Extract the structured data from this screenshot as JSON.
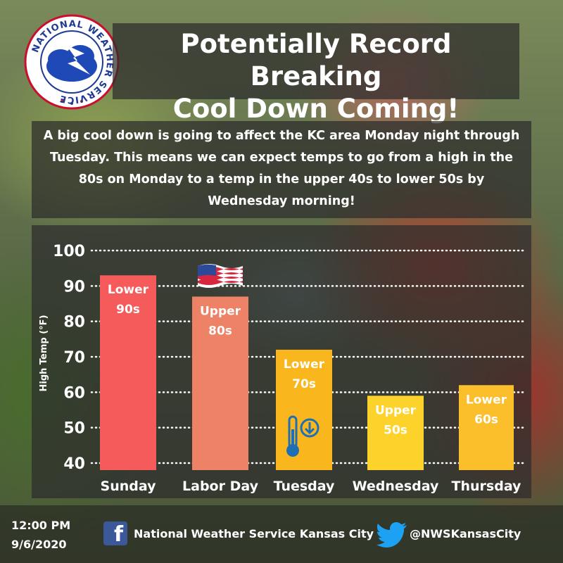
{
  "header": {
    "title_line1": "Potentially Record Breaking",
    "title_line2": "Cool Down Coming!",
    "logo_text": "NATIONAL WEATHER SERVICE"
  },
  "description": "A big cool down is going to affect the KC area Monday night through Tuesday. This means we can expect temps to go from a high in the 80s on Monday to a temp in the upper 40s to lower 50s by Wednesday morning!",
  "chart_data": {
    "type": "bar",
    "ylabel": "High Temp (°F)",
    "ylim": [
      40,
      100
    ],
    "yticks": [
      40,
      50,
      60,
      70,
      80,
      90,
      100
    ],
    "grid": true,
    "categories": [
      "Sunday",
      "Labor Day",
      "Tuesday",
      "Wednesday",
      "Thursday"
    ],
    "values": [
      93,
      87,
      72,
      59,
      62
    ],
    "bar_labels": [
      [
        "Lower",
        "90s"
      ],
      [
        "Upper",
        "80s"
      ],
      [
        "Lower",
        "70s"
      ],
      [
        "Upper",
        "50s"
      ],
      [
        "Lower",
        "60s"
      ]
    ],
    "colors": [
      "#f65b5b",
      "#ee8267",
      "#f9b71d",
      "#fdd32b",
      "#fbbf2c"
    ]
  },
  "footer": {
    "time": "12:00 PM",
    "date": "9/6/2020",
    "facebook_name": "National Weather Service Kansas City",
    "twitter_handle": "@NWSKansasCity",
    "facebook_icon": "facebook-icon",
    "twitter_icon": "twitter-icon"
  }
}
